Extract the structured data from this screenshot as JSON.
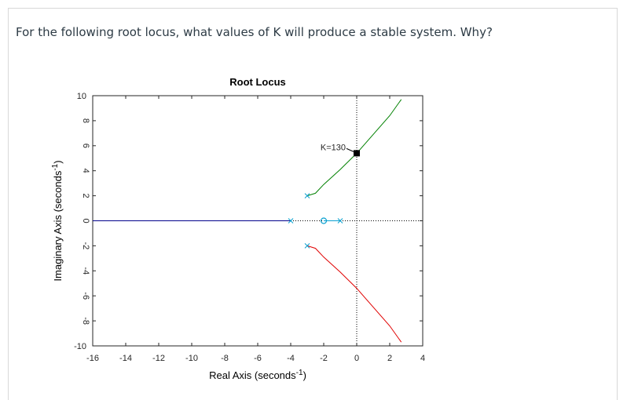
{
  "question": "For the following root locus, what values of K will produce a stable system. Why?",
  "chart_data": {
    "type": "line",
    "title": "Root Locus",
    "xlabel": "Real Axis (seconds",
    "ylabel": "Imaginary Axis (seconds",
    "label_superscript": "-1",
    "label_close": ")",
    "xlim": [
      -16,
      4
    ],
    "ylim": [
      -10,
      10
    ],
    "xticks": [
      -16,
      -14,
      -12,
      -10,
      -8,
      -6,
      -4,
      -2,
      0,
      2,
      4
    ],
    "yticks": [
      -10,
      -8,
      -6,
      -4,
      -2,
      0,
      2,
      4,
      6,
      8,
      10
    ],
    "grid": false,
    "series": [
      {
        "color": "#00008b",
        "points": [
          [
            -4,
            0
          ],
          [
            -16,
            0
          ]
        ]
      },
      {
        "color": "#008000",
        "points": [
          [
            -3,
            2
          ],
          [
            -2.5,
            2.2
          ],
          [
            -2,
            2.9
          ],
          [
            -1,
            4.1
          ],
          [
            0,
            5.4
          ],
          [
            1,
            6.9
          ],
          [
            2,
            8.4
          ],
          [
            2.7,
            9.7
          ]
        ]
      },
      {
        "color": "#e00000",
        "points": [
          [
            -3,
            -2
          ],
          [
            -2.5,
            -2.2
          ],
          [
            -2,
            -2.9
          ],
          [
            -1,
            -4.1
          ],
          [
            0,
            -5.4
          ],
          [
            1,
            -6.9
          ],
          [
            2,
            -8.4
          ],
          [
            2.7,
            -9.7
          ]
        ]
      },
      {
        "color": "#0aa0d0",
        "points": [
          [
            -2,
            0
          ],
          [
            -1,
            0
          ]
        ]
      }
    ],
    "poles": [
      [
        -3,
        2
      ],
      [
        -3,
        -2
      ],
      [
        -4,
        0
      ],
      [
        -1,
        0
      ]
    ],
    "zeros": [
      [
        -2,
        0
      ]
    ],
    "annotation": {
      "text": "K=130",
      "x": 0,
      "y": 5.4
    },
    "reference_lines": {
      "x": 0,
      "y": 0,
      "style": "dotted"
    }
  }
}
